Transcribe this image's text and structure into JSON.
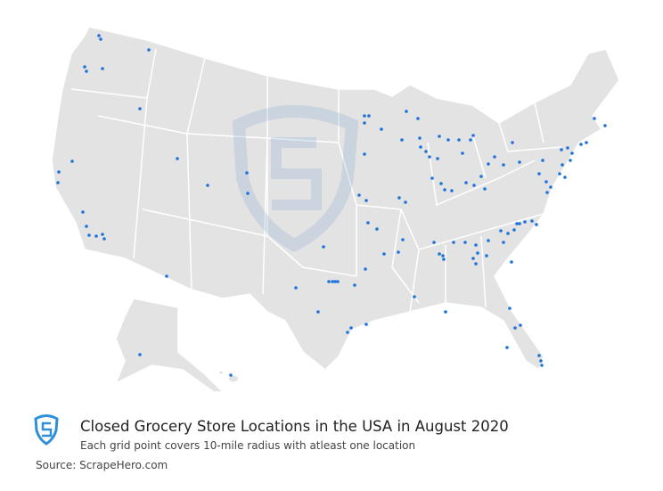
{
  "title": "Closed Grocery Store Locations in the USA in August 2020",
  "subtitle": "Each grid point covers 10-mile radius with atleast one location",
  "source": "Source: ScrapeHero.com"
}
